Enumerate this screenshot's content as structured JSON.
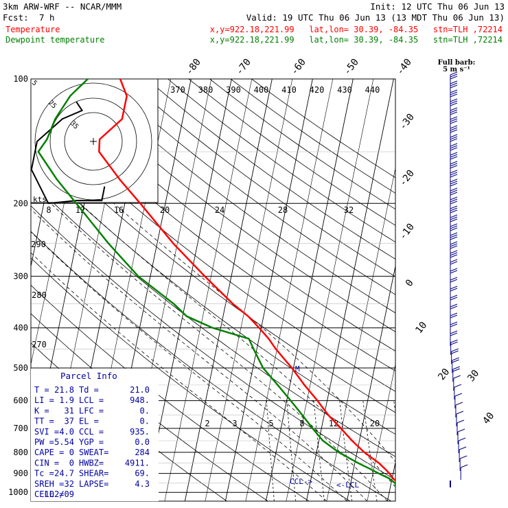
{
  "header": {
    "model": "3km ARW-WRF -- NCAR/MMM",
    "init": "Init: 12 UTC Thu 06 Jun 13",
    "fcst_label": "Fcst:",
    "fcst_value": "7 h",
    "valid": "Valid: 19 UTC Thu 06 Jun 13 (13 MDT Thu 06 Jun 13)"
  },
  "legend": [
    {
      "name": "Temperature",
      "coords": "x,y=922.18,221.99   lat,lon= 30.39, -84.35   stn=TLH ,72214",
      "color": "#ff0000"
    },
    {
      "name": "Dewpoint temperature",
      "coords": "x,y=922.18,221.99   lat,lon= 30.39, -84.35   stn=TLH ,72214",
      "color": "#008000"
    }
  ],
  "barb_key": {
    "title": "Full barb:",
    "value": "5 m s⁻¹"
  },
  "hodograph": {
    "kts_label": "kts",
    "ring_labels": [
      "5",
      "25",
      "35"
    ]
  },
  "parcel_info": {
    "title": "Parcel Info",
    "rows": [
      [
        "T  =",
        "21.8",
        "Td =",
        "21.0"
      ],
      [
        "LI =",
        "1.9",
        "LCL =",
        "948."
      ],
      [
        "K  =",
        "31",
        "LFC =",
        "0."
      ],
      [
        "TT =",
        "37",
        "EL  =",
        "0."
      ],
      [
        "SVI =",
        "4.0",
        "CCL =",
        "935."
      ],
      [
        "PW =",
        "5.54",
        "YGP =",
        "0.0"
      ],
      [
        "CAPE =",
        "0",
        "SWEAT=",
        "284"
      ],
      [
        "CIN =",
        "0",
        "HWBZ=",
        "4911."
      ],
      [
        "Tc =",
        "24.7",
        "SHEAR=",
        "69."
      ],
      [
        "SREH =",
        "32",
        "LAPSE=",
        "4.3"
      ],
      [
        "CELL =",
        "102/09",
        "",
        ""
      ]
    ]
  },
  "markers": {
    "ccl": "CCL->",
    "lcl": "<-LCL",
    "m": "M"
  },
  "chart_data": {
    "type": "line",
    "subtype": "skew-T log-p",
    "y_axis": {
      "label": "pressure (hPa)",
      "scale": "log",
      "reversed": true,
      "ticks": [
        100,
        200,
        300,
        400,
        500,
        600,
        700,
        800,
        900,
        1000
      ]
    },
    "isotherm_labels": [
      "-80",
      "-70",
      "-60",
      "-50",
      "-40",
      "-30",
      "-20",
      "-10",
      "0",
      "10",
      "20",
      "30",
      "40"
    ],
    "theta_labels": [
      "370",
      "380",
      "390",
      "400",
      "410",
      "420",
      "430",
      "440"
    ],
    "theta_left_labels": [
      "290",
      "280",
      "270"
    ],
    "mixing_ratio_labels": [
      "2",
      "3",
      "5",
      "8",
      "12",
      "20"
    ],
    "hodo_axis_labels": [
      "8",
      "12",
      "16",
      "20",
      "24",
      "28",
      "32"
    ],
    "series": [
      {
        "name": "Temperature",
        "color": "#ff0000",
        "p": [
          1000,
          975,
          950,
          925,
          900,
          875,
          850,
          800,
          750,
          700,
          650,
          600,
          550,
          500,
          450,
          425,
          400,
          375,
          350,
          300,
          250,
          200,
          175,
          150,
          140,
          125,
          110,
          100
        ],
        "t": [
          24.9,
          23.2,
          21.8,
          20.2,
          19.1,
          17.6,
          16.0,
          11.8,
          8.2,
          4.8,
          1.0,
          -2.4,
          -6.4,
          -10.4,
          -15.3,
          -17.6,
          -20.5,
          -23.8,
          -28.2,
          -36.6,
          -46.0,
          -56.2,
          -62.5,
          -69.0,
          -69.5,
          -65.0,
          -65.0,
          -67.5
        ]
      },
      {
        "name": "Dewpoint temperature",
        "color": "#008000",
        "p": [
          1000,
          975,
          950,
          925,
          900,
          875,
          850,
          800,
          750,
          700,
          650,
          600,
          550,
          500,
          450,
          425,
          400,
          375,
          350,
          300,
          250,
          200,
          175,
          150,
          140,
          125,
          110,
          100
        ],
        "t": [
          21.9,
          21.4,
          21.0,
          19.2,
          16.5,
          13.8,
          10.9,
          5.5,
          1.0,
          -2.2,
          -5.4,
          -9.0,
          -13.0,
          -17.5,
          -20.8,
          -22.5,
          -32.0,
          -39.0,
          -42.8,
          -53.0,
          -62.0,
          -72.0,
          -78.0,
          -84.0,
          -82.5,
          -81.5,
          -79.0,
          -75.5
        ]
      }
    ],
    "hodograph_points": [
      [
        -6,
        -14
      ],
      [
        -4,
        -11
      ],
      [
        -11,
        -8
      ],
      [
        -20,
        0
      ],
      [
        -22,
        10
      ],
      [
        -16,
        22
      ],
      [
        -6,
        21
      ],
      [
        3,
        21
      ],
      [
        4,
        16
      ]
    ]
  }
}
